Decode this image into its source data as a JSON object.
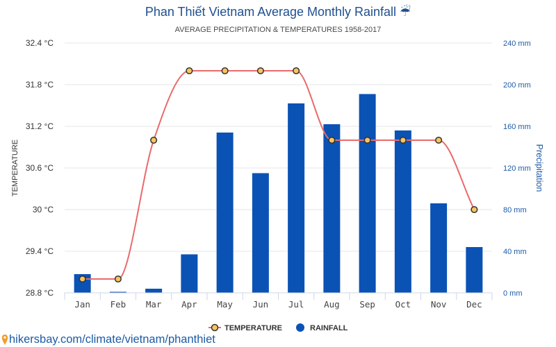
{
  "chart_data": {
    "type": "bar",
    "title": "Phan Thiết Vietnam Average Monthly Rainfall ☔",
    "subtitle": "AVERAGE PRECIPITATION & TEMPERATURES 1958-2017",
    "categories": [
      "Jan",
      "Feb",
      "Mar",
      "Apr",
      "May",
      "Jun",
      "Jul",
      "Aug",
      "Sep",
      "Oct",
      "Nov",
      "Dec"
    ],
    "series": [
      {
        "name": "TEMPERATURE",
        "type": "line",
        "y_axis": "left",
        "values": [
          29.0,
          29.0,
          31.0,
          32.0,
          32.0,
          32.0,
          32.0,
          31.0,
          31.0,
          31.0,
          31.0,
          30.0
        ],
        "color": "#e96a6a",
        "marker_fill": "#f7c45f",
        "marker_stroke": "#333333"
      },
      {
        "name": "RAINFALL",
        "type": "bar",
        "y_axis": "right",
        "values": [
          18,
          1,
          4,
          37,
          154,
          115,
          182,
          162,
          191,
          156,
          86,
          44
        ],
        "color": "#0b52b5"
      }
    ],
    "y_left": {
      "label": "TEMPERATURE",
      "min": 28.8,
      "max": 32.4,
      "ticks": [
        28.8,
        29.4,
        30,
        30.6,
        31.2,
        31.8,
        32.4
      ],
      "tick_labels": [
        "28.8 °C",
        "29.4 °C",
        "30 °C",
        "30.6 °C",
        "31.2 °C",
        "31.8 °C",
        "32.4 °C"
      ],
      "color": "#333333"
    },
    "y_right": {
      "label": "Precipitation",
      "min": 0,
      "max": 240,
      "ticks": [
        0,
        40,
        80,
        120,
        160,
        200,
        240
      ],
      "tick_labels": [
        "0 mm",
        "40 mm",
        "80 mm",
        "120 mm",
        "160 mm",
        "200 mm",
        "240 mm"
      ],
      "color": "#1c5aa6"
    },
    "grid": true,
    "legend": "bottom-center",
    "title_color": "#1f4f8f"
  },
  "footer": {
    "link_text": "hikersbay.com/climate/vietnam/phanthiet",
    "icon": "location-pin-icon",
    "icon_color": "#f29d2a",
    "link_color": "#1b5aa6"
  }
}
